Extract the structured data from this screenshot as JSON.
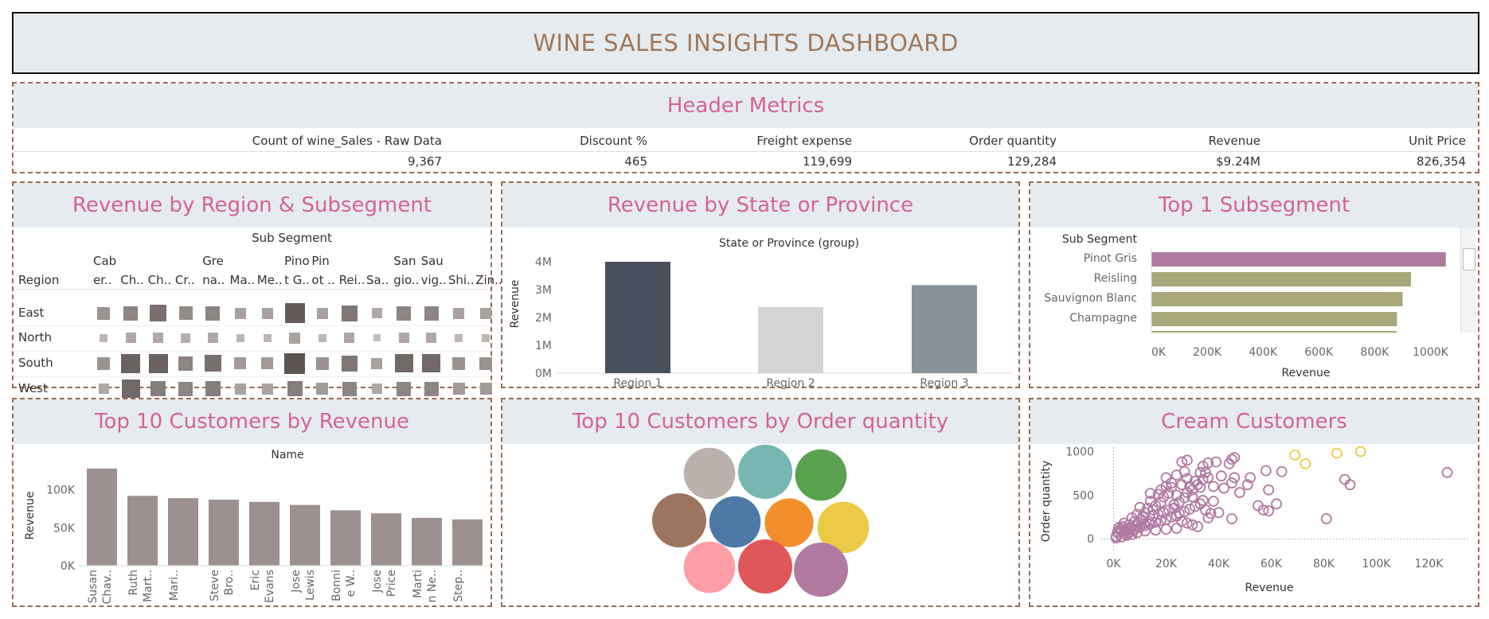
{
  "title": "WINE SALES INSIGHTS DASHBOARD",
  "header_metrics": {
    "title": "Header Metrics",
    "columns": [
      {
        "label": "Count of wine_Sales - Raw Data",
        "value": "9,367"
      },
      {
        "label": "Discount %",
        "value": "465"
      },
      {
        "label": "Freight expense",
        "value": "119,699"
      },
      {
        "label": "Order quantity",
        "value": "129,284"
      },
      {
        "label": "Revenue",
        "value": "$9.24M"
      },
      {
        "label": "Unit Price",
        "value": "826,354"
      }
    ]
  },
  "region_subsegment": {
    "title": "Revenue by Region & Subsegment",
    "col_header": "Sub Segment",
    "row_header": "Region",
    "columns": [
      {
        "l1": "Cab",
        "l2": "er.."
      },
      {
        "l1": "",
        "l2": "Ch.."
      },
      {
        "l1": "",
        "l2": "Ch.."
      },
      {
        "l1": "",
        "l2": "Cr.."
      },
      {
        "l1": "Gre",
        "l2": "na.."
      },
      {
        "l1": "",
        "l2": "Ma.."
      },
      {
        "l1": "",
        "l2": "Me.."
      },
      {
        "l1": "Pino",
        "l2": "t G.."
      },
      {
        "l1": "Pin",
        "l2": "ot .."
      },
      {
        "l1": "",
        "l2": "Rei.."
      },
      {
        "l1": "",
        "l2": "Sa.."
      },
      {
        "l1": "San",
        "l2": "gio.."
      },
      {
        "l1": "Sau",
        "l2": "vig.."
      },
      {
        "l1": "",
        "l2": "Shi.."
      },
      {
        "l1": "",
        "l2": "Zin.."
      }
    ],
    "rows": [
      "East",
      "North",
      "South",
      "West"
    ],
    "values": [
      [
        0.45,
        0.55,
        0.7,
        0.5,
        0.55,
        0.35,
        0.35,
        0.85,
        0.35,
        0.65,
        0.3,
        0.55,
        0.55,
        0.35,
        0.35
      ],
      [
        0.2,
        0.3,
        0.3,
        0.25,
        0.3,
        0.2,
        0.2,
        0.35,
        0.2,
        0.3,
        0.15,
        0.3,
        0.3,
        0.2,
        0.2
      ],
      [
        0.45,
        0.8,
        0.8,
        0.55,
        0.7,
        0.4,
        0.4,
        0.9,
        0.45,
        0.65,
        0.35,
        0.75,
        0.75,
        0.45,
        0.45
      ],
      [
        0.3,
        0.75,
        0.6,
        0.55,
        0.6,
        0.35,
        0.35,
        0.6,
        0.4,
        0.55,
        0.3,
        0.55,
        0.55,
        0.4,
        0.4
      ]
    ]
  },
  "state_revenue": {
    "title": "Revenue by State or Province",
    "chart_data": {
      "type": "bar",
      "title": "State or Province (group)",
      "categories": [
        "Region 1",
        "Region 2",
        "Region 3"
      ],
      "values": [
        4.0,
        2.37,
        3.16
      ],
      "colors": [
        "#4a505b",
        "#d4d4d4",
        "#8a9299"
      ],
      "ylabel": "Revenue",
      "ylim": [
        0,
        4
      ],
      "yticks": [
        "0M",
        "1M",
        "2M",
        "3M",
        "4M"
      ]
    }
  },
  "top_subsegment": {
    "title": "Top 1 Subsegment",
    "chart_data": {
      "type": "bar",
      "orientation": "horizontal",
      "col_header": "Sub Segment",
      "categories": [
        "Pinot Gris",
        "Reisling",
        "Sauvignon Blanc",
        "Champagne"
      ],
      "values": [
        1055000,
        930000,
        900000,
        880000
      ],
      "colors": [
        "#b07aa1",
        "#a8a87a",
        "#a8a87a",
        "#a8a87a"
      ],
      "xlabel": "Revenue",
      "xlim": [
        0,
        1050000
      ],
      "xticks": [
        "0K",
        "200K",
        "400K",
        "600K",
        "800K",
        "1000K"
      ]
    }
  },
  "top_customers_revenue": {
    "title": "Top 10 Customers by Revenue",
    "chart_data": {
      "type": "bar",
      "title": "Name",
      "categories": [
        [
          "Susan",
          "Chav.."
        ],
        [
          "Ruth",
          "Mart.."
        ],
        [
          "Mari.."
        ],
        [
          "Steve",
          "Bro.."
        ],
        [
          "Eric",
          "Evans"
        ],
        [
          "Jose",
          "Lewis"
        ],
        [
          "Bonni",
          "e W.."
        ],
        [
          "Jose",
          "Price"
        ],
        [
          "Marti",
          "n Ne.."
        ],
        [
          "Step.."
        ]
      ],
      "values": [
        128000,
        92000,
        89000,
        87000,
        84000,
        80000,
        73000,
        69000,
        63000,
        61000
      ],
      "ylabel": "Revenue",
      "ylim": [
        0,
        130000
      ],
      "yticks": [
        "0K",
        "50K",
        "100K"
      ]
    }
  },
  "top_customers_qty": {
    "title": "Top 10 Customers by Order quantity",
    "bubbles": [
      {
        "color": "#bab0ac",
        "size": 0.95
      },
      {
        "color": "#76b7b2",
        "size": 1.0
      },
      {
        "color": "#59a14f",
        "size": 0.95
      },
      {
        "color": "#9c755f",
        "size": 1.0
      },
      {
        "color": "#4e79a7",
        "size": 0.95
      },
      {
        "color": "#f28e2b",
        "size": 0.9
      },
      {
        "color": "#edc948",
        "size": 0.95
      },
      {
        "color": "#ff9da7",
        "size": 0.95
      },
      {
        "color": "#e15759",
        "size": 1.0
      },
      {
        "color": "#b07aa1",
        "size": 1.0
      }
    ]
  },
  "cream_customers": {
    "title": "Cream Customers",
    "chart_data": {
      "type": "scatter",
      "xlabel": "Revenue",
      "ylabel": "Order quantity",
      "xlim": [
        -5000,
        135000
      ],
      "ylim": [
        -80,
        1050
      ],
      "xticks": [
        "0K",
        "20K",
        "40K",
        "60K",
        "80K",
        "100K",
        "120K"
      ],
      "yticks": [
        "0",
        "500",
        "1000"
      ],
      "highlight_color": "#edc948",
      "base_color": "#b07aa1",
      "highlight_points": [
        [
          69000,
          960
        ],
        [
          73000,
          860
        ],
        [
          85000,
          980
        ],
        [
          94000,
          1000
        ]
      ],
      "points": [
        [
          127000,
          760
        ],
        [
          81000,
          230
        ],
        [
          88000,
          680
        ],
        [
          90000,
          620
        ],
        [
          64000,
          770
        ],
        [
          59000,
          560
        ],
        [
          55000,
          380
        ],
        [
          57000,
          330
        ],
        [
          59000,
          320
        ],
        [
          58000,
          780
        ],
        [
          51000,
          620
        ],
        [
          48000,
          530
        ],
        [
          46000,
          700
        ],
        [
          45000,
          640
        ],
        [
          44000,
          860
        ],
        [
          45000,
          910
        ],
        [
          46000,
          930
        ],
        [
          42000,
          580
        ],
        [
          40000,
          300
        ],
        [
          39000,
          880
        ],
        [
          36000,
          870
        ],
        [
          34000,
          830
        ],
        [
          35000,
          760
        ],
        [
          36000,
          700
        ],
        [
          34000,
          680
        ],
        [
          31000,
          660
        ],
        [
          32000,
          620
        ],
        [
          30000,
          560
        ],
        [
          29000,
          600
        ],
        [
          28000,
          530
        ],
        [
          27000,
          470
        ],
        [
          33000,
          590
        ],
        [
          34000,
          440
        ],
        [
          38000,
          430
        ],
        [
          36000,
          240
        ],
        [
          45000,
          230
        ],
        [
          26000,
          880
        ],
        [
          27000,
          770
        ],
        [
          28000,
          690
        ],
        [
          24000,
          730
        ],
        [
          22000,
          640
        ],
        [
          20000,
          600
        ],
        [
          21000,
          520
        ],
        [
          24000,
          500
        ],
        [
          25000,
          420
        ],
        [
          23000,
          390
        ],
        [
          19000,
          480
        ],
        [
          18000,
          420
        ],
        [
          17000,
          510
        ],
        [
          16000,
          380
        ],
        [
          14000,
          430
        ],
        [
          15000,
          330
        ],
        [
          13000,
          350
        ],
        [
          12000,
          300
        ],
        [
          10000,
          360
        ],
        [
          11000,
          250
        ],
        [
          9000,
          280
        ],
        [
          8000,
          200
        ],
        [
          7000,
          240
        ],
        [
          6000,
          160
        ],
        [
          5000,
          120
        ],
        [
          4000,
          180
        ],
        [
          3000,
          90
        ],
        [
          2000,
          60
        ],
        [
          1000,
          30
        ],
        [
          2000,
          130
        ],
        [
          4000,
          60
        ],
        [
          6000,
          80
        ],
        [
          8000,
          110
        ],
        [
          10000,
          130
        ],
        [
          12000,
          150
        ],
        [
          14000,
          170
        ],
        [
          16000,
          190
        ],
        [
          18000,
          210
        ],
        [
          20000,
          220
        ],
        [
          22000,
          250
        ],
        [
          24000,
          260
        ],
        [
          26000,
          200
        ],
        [
          28000,
          180
        ],
        [
          30000,
          160
        ],
        [
          32000,
          140
        ],
        [
          24000,
          120
        ],
        [
          20000,
          110
        ],
        [
          16000,
          100
        ],
        [
          12000,
          90
        ],
        [
          9000,
          70
        ],
        [
          7000,
          50
        ],
        [
          5000,
          40
        ],
        [
          3000,
          20
        ],
        [
          1000,
          10
        ],
        [
          1500,
          80
        ],
        [
          2500,
          110
        ],
        [
          3500,
          140
        ],
        [
          4500,
          100
        ],
        [
          5500,
          60
        ],
        [
          6500,
          130
        ],
        [
          7500,
          90
        ],
        [
          8500,
          150
        ],
        [
          9500,
          190
        ],
        [
          10500,
          220
        ],
        [
          11500,
          170
        ],
        [
          13500,
          200
        ],
        [
          15000,
          260
        ],
        [
          17000,
          280
        ],
        [
          19000,
          300
        ],
        [
          21000,
          330
        ],
        [
          23000,
          350
        ],
        [
          25000,
          290
        ],
        [
          27000,
          310
        ],
        [
          29000,
          340
        ],
        [
          31000,
          370
        ],
        [
          33000,
          400
        ],
        [
          35000,
          330
        ],
        [
          37000,
          290
        ],
        [
          14000,
          520
        ],
        [
          18000,
          560
        ],
        [
          22000,
          590
        ],
        [
          26000,
          620
        ],
        [
          30000,
          480
        ],
        [
          38000,
          600
        ],
        [
          41000,
          720
        ],
        [
          52000,
          700
        ],
        [
          62000,
          400
        ],
        [
          20000,
          700
        ],
        [
          28000,
          900
        ],
        [
          33000,
          760
        ]
      ]
    }
  }
}
